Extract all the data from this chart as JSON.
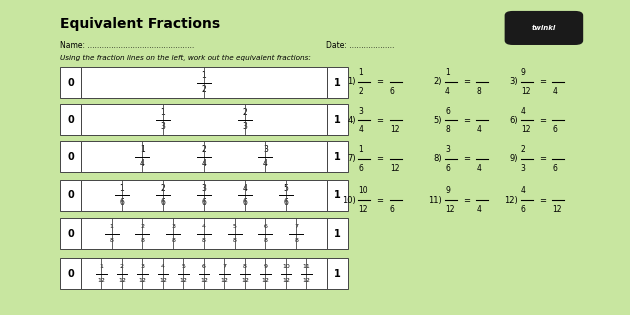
{
  "bg_color": "#c8e6a0",
  "page_color": "#ffffff",
  "title": "Equivalent Fractions",
  "name_label": "Name: .............................................",
  "date_label": "Date: ...................",
  "instruction": "Using the fraction lines on the left, work out the equivalent fractions:",
  "fraction_lines": [
    {
      "divisions": 2,
      "fractions": [
        "1/2"
      ]
    },
    {
      "divisions": 3,
      "fractions": [
        "1/3",
        "2/3"
      ]
    },
    {
      "divisions": 4,
      "fractions": [
        "1/4",
        "2/4",
        "3/4"
      ]
    },
    {
      "divisions": 6,
      "fractions": [
        "1/6",
        "2/6",
        "3/6",
        "4/6",
        "5/6"
      ]
    },
    {
      "divisions": 8,
      "fractions": [
        "1/8",
        "2/8",
        "3/8",
        "4/8",
        "5/8",
        "6/8",
        "7/8"
      ]
    },
    {
      "divisions": 12,
      "fractions": [
        "1/12",
        "2/12",
        "3/12",
        "4/12",
        "5/12",
        "6/12",
        "7/12",
        "8/12",
        "9/12",
        "10/12",
        "11/12"
      ]
    }
  ],
  "questions": [
    {
      "num": "1",
      "n1": "1",
      "d1": "2",
      "d2": "6"
    },
    {
      "num": "2",
      "n1": "1",
      "d1": "4",
      "d2": "8"
    },
    {
      "num": "3",
      "n1": "9",
      "d1": "12",
      "d2": "4"
    },
    {
      "num": "4",
      "n1": "3",
      "d1": "4",
      "d2": "12"
    },
    {
      "num": "5",
      "n1": "6",
      "d1": "8",
      "d2": "4"
    },
    {
      "num": "6",
      "n1": "4",
      "d1": "12",
      "d2": "6"
    },
    {
      "num": "7",
      "n1": "1",
      "d1": "6",
      "d2": "12"
    },
    {
      "num": "8",
      "n1": "3",
      "d1": "6",
      "d2": "4"
    },
    {
      "num": "9",
      "n1": "2",
      "d1": "3",
      "d2": "6"
    },
    {
      "num": "10",
      "n1": "10",
      "d1": "12",
      "d2": "6"
    },
    {
      "num": "11",
      "n1": "9",
      "d1": "12",
      "d2": "4"
    },
    {
      "num": "12",
      "n1": "4",
      "d1": "6",
      "d2": "12"
    }
  ]
}
